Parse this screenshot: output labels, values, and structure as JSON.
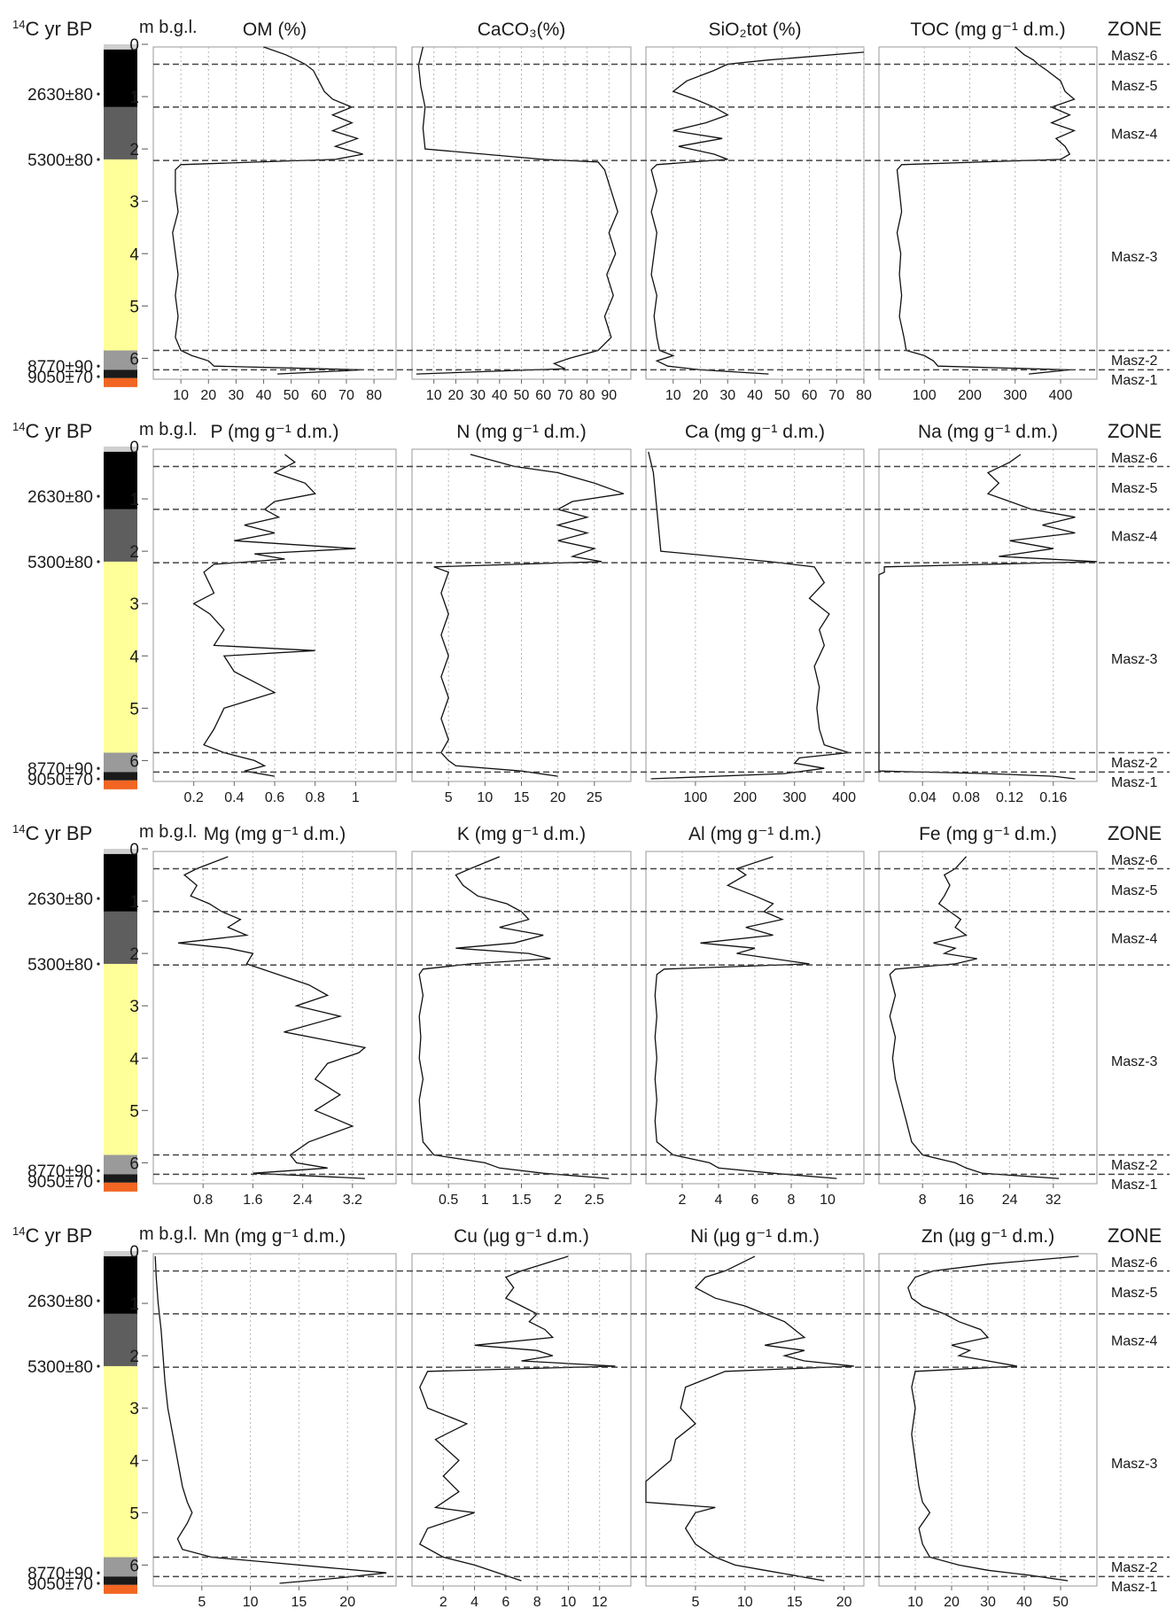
{
  "figure": {
    "age_header_parts": [
      "14",
      "C yr BP"
    ],
    "depth_header": "m b.g.l.",
    "zone_header": "ZONE",
    "depth_ticks": [
      0,
      1,
      2,
      3,
      4,
      5,
      6
    ],
    "depth_range": [
      0,
      6.4
    ],
    "age_labels": [
      {
        "label": "2630±80",
        "depth": 0.95
      },
      {
        "label": "5300±80",
        "depth": 2.2
      },
      {
        "label": "8770±90",
        "depth": 6.15
      },
      {
        "label": "9050±70",
        "depth": 6.35
      }
    ],
    "lithology": [
      {
        "from": 0.0,
        "to": 0.1,
        "color": "#cfcfcf"
      },
      {
        "from": 0.1,
        "to": 1.2,
        "color": "#000000"
      },
      {
        "from": 1.2,
        "to": 2.2,
        "color": "#5e5e5e"
      },
      {
        "from": 2.2,
        "to": 5.85,
        "color": "#ffff99"
      },
      {
        "from": 5.85,
        "to": 6.22,
        "color": "#9a9a9a"
      },
      {
        "from": 6.22,
        "to": 6.38,
        "color": "#1a1a1a"
      },
      {
        "from": 6.38,
        "to": 6.55,
        "color": "#f26522"
      }
    ],
    "zone_boundaries": [
      0.38,
      1.2,
      2.22,
      5.85,
      6.22
    ],
    "zones": [
      {
        "label": "Masz-6",
        "depth": 0.2
      },
      {
        "label": "Masz-5",
        "depth": 0.78
      },
      {
        "label": "Masz-4",
        "depth": 1.7
      },
      {
        "label": "Masz-3",
        "depth": 4.05
      },
      {
        "label": "Masz-2",
        "depth": 6.03
      },
      {
        "label": "Masz-1",
        "depth": 6.4
      }
    ]
  },
  "chart_data": [
    {
      "type": "line",
      "row": 0,
      "col": 0,
      "title": "OM (%)",
      "xticks": [
        10,
        20,
        30,
        40,
        50,
        60,
        70,
        80
      ],
      "xlim": [
        0,
        88
      ],
      "y": [
        0.05,
        0.2,
        0.3,
        0.38,
        0.5,
        0.7,
        0.9,
        1.05,
        1.2,
        1.35,
        1.5,
        1.65,
        1.8,
        1.95,
        2.1,
        2.2,
        2.3,
        2.4,
        2.8,
        3.2,
        3.6,
        4.0,
        4.4,
        4.8,
        5.2,
        5.6,
        5.85,
        5.95,
        6.05,
        6.15,
        6.22,
        6.3
      ],
      "x": [
        40,
        48,
        52,
        55,
        58,
        60,
        62,
        65,
        72,
        65,
        72,
        65,
        74,
        66,
        76,
        66,
        10,
        8,
        8,
        9,
        7,
        8,
        9,
        8,
        9,
        8,
        10,
        14,
        20,
        22,
        76,
        45
      ]
    },
    {
      "type": "line",
      "row": 0,
      "col": 1,
      "title": "CaCO₃(%)",
      "xticks": [
        10,
        20,
        30,
        40,
        50,
        60,
        70,
        80,
        90
      ],
      "xlim": [
        0,
        100
      ],
      "y": [
        0.05,
        0.4,
        0.8,
        1.2,
        1.6,
        2.0,
        2.2,
        2.25,
        2.4,
        2.8,
        3.2,
        3.6,
        4.0,
        4.4,
        4.8,
        5.2,
        5.6,
        5.85,
        6.0,
        6.1,
        6.2,
        6.3
      ],
      "x": [
        5,
        3,
        4,
        6,
        5,
        6,
        60,
        85,
        88,
        91,
        94,
        90,
        93,
        89,
        92,
        88,
        91,
        85,
        72,
        65,
        70,
        2
      ]
    },
    {
      "type": "line",
      "row": 0,
      "col": 2,
      "title": "SiO₂tot (%)",
      "xticks": [
        10,
        20,
        30,
        40,
        50,
        60,
        70,
        80
      ],
      "xlim": [
        0,
        80
      ],
      "y": [
        0.15,
        0.3,
        0.38,
        0.5,
        0.7,
        0.9,
        1.05,
        1.2,
        1.35,
        1.5,
        1.65,
        1.8,
        1.95,
        2.1,
        2.2,
        2.3,
        2.4,
        2.8,
        3.2,
        3.6,
        4.0,
        4.4,
        4.8,
        5.2,
        5.6,
        5.85,
        5.95,
        6.05,
        6.15,
        6.22,
        6.3
      ],
      "x": [
        80,
        45,
        30,
        25,
        15,
        10,
        18,
        25,
        30,
        22,
        10,
        28,
        12,
        25,
        30,
        4,
        2,
        4,
        2,
        4,
        3,
        2,
        4,
        3,
        4,
        5,
        10,
        4,
        8,
        20,
        45
      ]
    },
    {
      "type": "line",
      "row": 0,
      "col": 3,
      "title": "TOC (mg g⁻¹ d.m.)",
      "xticks": [
        100,
        200,
        300,
        400
      ],
      "xlim": [
        0,
        480
      ],
      "y": [
        0.05,
        0.2,
        0.3,
        0.38,
        0.5,
        0.7,
        0.9,
        1.05,
        1.2,
        1.35,
        1.5,
        1.65,
        1.8,
        1.95,
        2.1,
        2.2,
        2.3,
        2.4,
        2.8,
        3.2,
        3.6,
        4.0,
        4.4,
        4.8,
        5.2,
        5.6,
        5.85,
        5.95,
        6.05,
        6.15,
        6.22,
        6.3
      ],
      "x": [
        300,
        320,
        340,
        350,
        370,
        400,
        410,
        430,
        380,
        420,
        380,
        430,
        390,
        410,
        420,
        400,
        50,
        40,
        45,
        50,
        40,
        48,
        45,
        50,
        45,
        55,
        60,
        100,
        120,
        130,
        420,
        330
      ]
    },
    {
      "type": "line",
      "row": 1,
      "col": 0,
      "title": "P (mg g⁻¹ d.m.)",
      "xticks": [
        0.2,
        0.4,
        0.6,
        0.8,
        1.0
      ],
      "xlim": [
        0,
        1.2
      ],
      "y": [
        0.15,
        0.3,
        0.5,
        0.7,
        0.9,
        1.05,
        1.2,
        1.35,
        1.5,
        1.65,
        1.8,
        1.95,
        2.05,
        2.15,
        2.25,
        2.4,
        2.8,
        3.0,
        3.2,
        3.5,
        3.8,
        3.9,
        4.0,
        4.3,
        4.7,
        5.0,
        5.4,
        5.7,
        5.85,
        6.0,
        6.1,
        6.2,
        6.3
      ],
      "x": [
        0.65,
        0.7,
        0.6,
        0.75,
        0.8,
        0.6,
        0.55,
        0.62,
        0.45,
        0.6,
        0.4,
        1.0,
        0.5,
        0.65,
        0.3,
        0.25,
        0.3,
        0.2,
        0.28,
        0.35,
        0.3,
        0.8,
        0.35,
        0.4,
        0.6,
        0.35,
        0.3,
        0.25,
        0.35,
        0.5,
        0.55,
        0.45,
        0.6
      ]
    },
    {
      "type": "line",
      "row": 1,
      "col": 1,
      "title": "N (mg g⁻¹ d.m.)",
      "xticks": [
        5,
        10,
        15,
        20,
        25
      ],
      "xlim": [
        0,
        30
      ],
      "y": [
        0.15,
        0.38,
        0.5,
        0.7,
        0.9,
        1.05,
        1.2,
        1.35,
        1.5,
        1.65,
        1.8,
        1.95,
        2.1,
        2.2,
        2.3,
        2.4,
        2.8,
        3.2,
        3.6,
        4.0,
        4.4,
        4.8,
        5.2,
        5.6,
        5.85,
        6.0,
        6.1,
        6.2,
        6.3
      ],
      "x": [
        8,
        14,
        20,
        25,
        29,
        22,
        20,
        24,
        20,
        24,
        20,
        25,
        22,
        26,
        3,
        5,
        4,
        5,
        4,
        5,
        4,
        5,
        4,
        5,
        4,
        5,
        6,
        15,
        20
      ]
    },
    {
      "type": "line",
      "row": 1,
      "col": 2,
      "title": "Ca (mg g⁻¹ d.m.)",
      "xticks": [
        100,
        200,
        300,
        400
      ],
      "xlim": [
        0,
        440
      ],
      "y": [
        0.1,
        0.5,
        1.0,
        1.5,
        2.0,
        2.2,
        2.3,
        2.6,
        2.9,
        3.2,
        3.5,
        3.8,
        4.2,
        4.6,
        5.0,
        5.4,
        5.7,
        5.85,
        5.95,
        6.05,
        6.15,
        6.25,
        6.35
      ],
      "x": [
        5,
        15,
        20,
        25,
        30,
        250,
        340,
        360,
        330,
        370,
        350,
        360,
        340,
        350,
        345,
        350,
        360,
        410,
        310,
        300,
        360,
        280,
        10
      ]
    },
    {
      "type": "line",
      "row": 1,
      "col": 3,
      "title": "Na (mg g⁻¹ d.m.)",
      "xticks": [
        0.04,
        0.08,
        0.12,
        0.16
      ],
      "xlim": [
        0,
        0.2
      ],
      "y": [
        0.15,
        0.3,
        0.5,
        0.7,
        0.9,
        1.05,
        1.2,
        1.35,
        1.5,
        1.65,
        1.8,
        1.95,
        2.1,
        2.2,
        2.3,
        2.4,
        2.45,
        6.2,
        6.25,
        6.3,
        6.35
      ],
      "x": [
        0.13,
        0.12,
        0.1,
        0.11,
        0.1,
        0.12,
        0.14,
        0.18,
        0.15,
        0.18,
        0.12,
        0.16,
        0.11,
        0.2,
        0.005,
        0.005,
        0.0,
        0.0,
        0.1,
        0.16,
        0.18
      ]
    },
    {
      "type": "line",
      "row": 2,
      "col": 0,
      "title": "Mg (mg g⁻¹ d.m.)",
      "xticks": [
        0.8,
        1.6,
        2.4,
        3.2
      ],
      "xlim": [
        0,
        3.9
      ],
      "y": [
        0.15,
        0.38,
        0.5,
        0.7,
        0.9,
        1.05,
        1.2,
        1.35,
        1.5,
        1.65,
        1.8,
        1.9,
        2.0,
        2.2,
        2.4,
        2.6,
        2.8,
        3.0,
        3.2,
        3.5,
        3.8,
        3.9,
        4.1,
        4.4,
        4.7,
        5.0,
        5.3,
        5.6,
        5.85,
        6.0,
        6.1,
        6.2,
        6.3
      ],
      "x": [
        1.2,
        0.7,
        0.5,
        0.7,
        0.6,
        0.9,
        1.1,
        1.4,
        1.2,
        1.5,
        0.4,
        1.2,
        1.6,
        1.5,
        2.0,
        2.5,
        2.8,
        2.3,
        3.0,
        2.1,
        3.4,
        3.3,
        2.8,
        2.6,
        3.0,
        2.6,
        3.2,
        2.5,
        2.2,
        2.3,
        2.8,
        1.6,
        3.4
      ]
    },
    {
      "type": "line",
      "row": 2,
      "col": 1,
      "title": "K (mg g⁻¹ d.m.)",
      "xticks": [
        0.5,
        1.0,
        1.5,
        2.0,
        2.5
      ],
      "xlim": [
        0,
        3.0
      ],
      "y": [
        0.15,
        0.38,
        0.5,
        0.7,
        0.9,
        1.05,
        1.2,
        1.35,
        1.5,
        1.65,
        1.8,
        1.9,
        2.0,
        2.1,
        2.2,
        2.3,
        2.4,
        2.8,
        3.2,
        3.6,
        4.0,
        4.4,
        4.8,
        5.2,
        5.6,
        5.85,
        6.0,
        6.1,
        6.2,
        6.3
      ],
      "x": [
        1.2,
        0.8,
        0.6,
        0.7,
        0.9,
        1.3,
        1.5,
        1.6,
        1.2,
        1.8,
        1.4,
        0.6,
        1.6,
        1.9,
        0.8,
        0.15,
        0.1,
        0.15,
        0.1,
        0.12,
        0.1,
        0.15,
        0.1,
        0.12,
        0.15,
        0.3,
        1.0,
        1.2,
        1.8,
        2.7
      ]
    },
    {
      "type": "line",
      "row": 2,
      "col": 2,
      "title": "Al (mg g⁻¹ d.m.)",
      "xticks": [
        2,
        4,
        6,
        8,
        10
      ],
      "xlim": [
        0,
        12
      ],
      "y": [
        0.15,
        0.38,
        0.5,
        0.7,
        0.9,
        1.05,
        1.2,
        1.35,
        1.5,
        1.65,
        1.8,
        1.9,
        2.0,
        2.1,
        2.2,
        2.3,
        2.4,
        2.8,
        3.2,
        3.6,
        4.0,
        4.4,
        4.8,
        5.2,
        5.6,
        5.85,
        6.0,
        6.1,
        6.2,
        6.3
      ],
      "x": [
        7.0,
        5.0,
        5.5,
        4.5,
        6.0,
        7.0,
        6.5,
        7.5,
        5.5,
        7.0,
        3.0,
        6.0,
        5.0,
        7.0,
        9.0,
        1.0,
        0.6,
        0.5,
        0.6,
        0.5,
        0.6,
        0.5,
        0.6,
        0.5,
        0.6,
        1.5,
        3.5,
        4.0,
        7.0,
        10.5
      ]
    },
    {
      "type": "line",
      "row": 2,
      "col": 3,
      "title": "Fe (mg g⁻¹ d.m.)",
      "xticks": [
        8,
        16,
        24,
        32
      ],
      "xlim": [
        0,
        40
      ],
      "y": [
        0.15,
        0.38,
        0.5,
        0.7,
        0.9,
        1.05,
        1.2,
        1.35,
        1.5,
        1.65,
        1.8,
        1.9,
        2.0,
        2.1,
        2.2,
        2.3,
        2.4,
        2.8,
        3.2,
        3.6,
        4.0,
        4.4,
        4.8,
        5.2,
        5.6,
        5.85,
        6.0,
        6.1,
        6.2,
        6.3
      ],
      "x": [
        16,
        14,
        12,
        13,
        12,
        11,
        13,
        15,
        14,
        16,
        10,
        14,
        12,
        18,
        14,
        3,
        2,
        3,
        2,
        3,
        2.5,
        3,
        4,
        5,
        6,
        8,
        14,
        16,
        19,
        33
      ]
    },
    {
      "type": "line",
      "row": 3,
      "col": 0,
      "title": "Mn (mg g⁻¹ d.m.)",
      "xticks": [
        5,
        10,
        15,
        20
      ],
      "xlim": [
        0,
        25
      ],
      "y": [
        0.1,
        0.5,
        1.0,
        1.5,
        2.0,
        2.5,
        3.0,
        3.5,
        4.0,
        4.5,
        4.8,
        5.0,
        5.2,
        5.5,
        5.7,
        5.85,
        5.95,
        6.05,
        6.15,
        6.25,
        6.35
      ],
      "x": [
        0.2,
        0.3,
        0.5,
        0.8,
        1.0,
        1.2,
        1.5,
        2.0,
        2.5,
        3.0,
        3.5,
        4.0,
        3.5,
        2.5,
        3.0,
        6.0,
        12.0,
        18.0,
        24.0,
        19.0,
        13.0
      ]
    },
    {
      "type": "line",
      "row": 3,
      "col": 1,
      "title": "Cu (µg g⁻¹ d.m.)",
      "xticks": [
        2,
        4,
        6,
        8,
        10,
        12
      ],
      "xlim": [
        0,
        14
      ],
      "y": [
        0.1,
        0.38,
        0.5,
        0.7,
        0.9,
        1.05,
        1.2,
        1.35,
        1.5,
        1.65,
        1.8,
        1.9,
        2.0,
        2.1,
        2.2,
        2.3,
        2.6,
        3.0,
        3.3,
        3.6,
        4.0,
        4.3,
        4.6,
        4.9,
        5.0,
        5.3,
        5.6,
        5.85,
        6.0,
        6.1,
        6.2,
        6.3
      ],
      "x": [
        10.0,
        7.0,
        6.0,
        6.5,
        6.0,
        7.0,
        8.0,
        7.5,
        8.5,
        9.0,
        4.0,
        8.0,
        9.0,
        7.0,
        13.0,
        1.0,
        0.5,
        1.0,
        3.5,
        1.5,
        3.0,
        2.0,
        3.0,
        1.5,
        4.0,
        1.0,
        0.5,
        2.0,
        4.0,
        5.0,
        6.0,
        7.0
      ]
    },
    {
      "type": "line",
      "row": 3,
      "col": 2,
      "title": "Ni (µg g⁻¹ d.m.)",
      "xticks": [
        5,
        10,
        15,
        20
      ],
      "xlim": [
        0,
        22
      ],
      "y": [
        0.1,
        0.38,
        0.5,
        0.7,
        0.9,
        1.05,
        1.2,
        1.35,
        1.5,
        1.65,
        1.8,
        1.9,
        2.0,
        2.1,
        2.2,
        2.3,
        2.6,
        3.0,
        3.3,
        3.6,
        4.0,
        4.4,
        4.8,
        4.9,
        5.0,
        5.3,
        5.6,
        5.85,
        6.0,
        6.1,
        6.2,
        6.3
      ],
      "x": [
        11.0,
        8.0,
        6.0,
        5.0,
        7.0,
        10.0,
        12.0,
        14.0,
        15.0,
        16.0,
        12.0,
        16.0,
        14.0,
        16.0,
        21.0,
        8.0,
        4.0,
        3.5,
        5.0,
        3.0,
        2.5,
        0.0,
        0.0,
        7.0,
        5.0,
        4.0,
        5.0,
        7.0,
        9.0,
        12.0,
        15.0,
        18.0
      ]
    },
    {
      "type": "line",
      "row": 3,
      "col": 3,
      "title": "Zn (µg g⁻¹ d.m.)",
      "xticks": [
        10,
        20,
        30,
        40,
        50
      ],
      "xlim": [
        0,
        60
      ],
      "y": [
        0.1,
        0.25,
        0.38,
        0.5,
        0.7,
        0.9,
        1.05,
        1.2,
        1.35,
        1.5,
        1.65,
        1.8,
        1.9,
        2.0,
        2.1,
        2.2,
        2.3,
        2.6,
        3.0,
        3.5,
        4.0,
        4.5,
        4.8,
        5.0,
        5.3,
        5.6,
        5.85,
        6.0,
        6.1,
        6.2,
        6.3
      ],
      "x": [
        55.0,
        30.0,
        15.0,
        10.0,
        8.0,
        9.0,
        12.0,
        18.0,
        22.0,
        28.0,
        30.0,
        20.0,
        25.0,
        22.0,
        30.0,
        38.0,
        10.0,
        9.0,
        10.0,
        9.0,
        10.0,
        11.0,
        12.0,
        14.0,
        11.0,
        12.0,
        14.0,
        22.0,
        30.0,
        42.0,
        52.0
      ]
    }
  ]
}
